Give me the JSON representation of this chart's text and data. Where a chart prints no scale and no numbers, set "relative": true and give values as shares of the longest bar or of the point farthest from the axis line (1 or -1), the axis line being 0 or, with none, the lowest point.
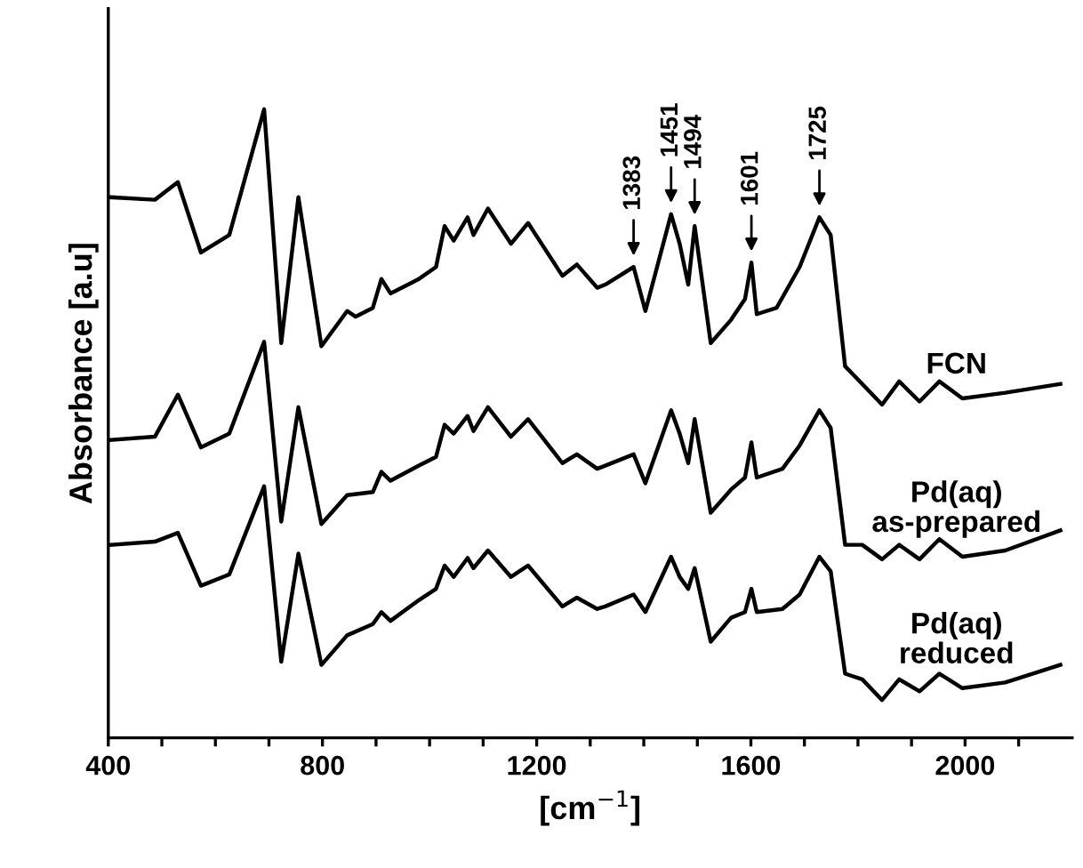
{
  "chart_data": {
    "type": "line",
    "relative": true,
    "xlabel": "[cm$^{−1}$]",
    "ylabel": "Absorbance [a.u]",
    "xlim": [
      400,
      2200
    ],
    "xticks": [
      400,
      {
        "value": 500,
        "label": null
      },
      {
        "value": 600,
        "label": null
      },
      {
        "value": 700,
        "label": null
      },
      800,
      {
        "value": 900,
        "label": null
      },
      {
        "value": 1000,
        "label": null
      },
      {
        "value": 1100,
        "label": null
      },
      1200,
      {
        "value": 1300,
        "label": null
      },
      {
        "value": 1400,
        "label": null
      },
      {
        "value": 1500,
        "label": null
      },
      1600,
      {
        "value": 1700,
        "label": null
      },
      {
        "value": 1800,
        "label": null
      },
      {
        "value": 1900,
        "label": null
      },
      2000,
      {
        "value": 2100,
        "label": null
      }
    ],
    "tick_labels": "x",
    "grid": false,
    "legend": false,
    "marker": "none",
    "line_style": "solid",
    "series": [
      {
        "name": "FCN",
        "color": "#000000",
        "x": [
          405,
          487,
          530,
          573,
          626,
          691,
          723,
          755,
          798,
          846,
          862,
          894,
          910,
          927,
          980,
          1012,
          1028,
          1045,
          1071,
          1082,
          1109,
          1152,
          1184,
          1248,
          1275,
          1313,
          1328,
          1381,
          1403,
          1451,
          1467,
          1483,
          1495,
          1525,
          1563,
          1589,
          1601,
          1611,
          1648,
          1691,
          1728,
          1749,
          1776,
          1808,
          1845,
          1877,
          1915,
          1952,
          1995,
          2075,
          2178
        ],
        "values": [
          0.86,
          0.856,
          0.884,
          0.772,
          0.8,
          1,
          0.628,
          0.86,
          0.623,
          0.679,
          0.67,
          0.684,
          0.73,
          0.707,
          0.73,
          0.749,
          0.814,
          0.791,
          0.828,
          0.8,
          0.842,
          0.786,
          0.819,
          0.735,
          0.753,
          0.716,
          0.721,
          0.749,
          0.679,
          0.833,
          0.786,
          0.721,
          0.814,
          0.628,
          0.665,
          0.698,
          0.756,
          0.674,
          0.684,
          0.749,
          0.828,
          0.8,
          0.591,
          0.563,
          0.53,
          0.567,
          0.535,
          0.567,
          0.54,
          0.549,
          0.563
        ]
      },
      {
        "name": "Pd(aq)\nas-prepared",
        "color": "#000000",
        "x": [
          405,
          487,
          530,
          573,
          626,
          691,
          723,
          755,
          798,
          846,
          894,
          910,
          927,
          980,
          1012,
          1028,
          1045,
          1071,
          1082,
          1109,
          1152,
          1184,
          1248,
          1275,
          1313,
          1328,
          1381,
          1403,
          1451,
          1467,
          1483,
          1495,
          1525,
          1563,
          1589,
          1601,
          1611,
          1659,
          1691,
          1728,
          1749,
          1776,
          1808,
          1845,
          1877,
          1915,
          1952,
          1995,
          2075,
          2178
        ],
        "values": [
          0.474,
          0.479,
          0.546,
          0.462,
          0.484,
          0.63,
          0.344,
          0.526,
          0.34,
          0.386,
          0.391,
          0.423,
          0.409,
          0.433,
          0.447,
          0.498,
          0.484,
          0.512,
          0.488,
          0.526,
          0.479,
          0.507,
          0.437,
          0.451,
          0.428,
          0.433,
          0.451,
          0.405,
          0.521,
          0.484,
          0.437,
          0.507,
          0.358,
          0.395,
          0.414,
          0.47,
          0.414,
          0.428,
          0.465,
          0.521,
          0.493,
          0.307,
          0.307,
          0.284,
          0.307,
          0.284,
          0.316,
          0.288,
          0.298,
          0.33
        ]
      },
      {
        "name": "Pd(aq)\nreduced",
        "color": "#000000",
        "x": [
          405,
          487,
          530,
          573,
          626,
          691,
          723,
          755,
          798,
          846,
          894,
          910,
          927,
          980,
          1012,
          1028,
          1045,
          1071,
          1082,
          1109,
          1152,
          1184,
          1248,
          1275,
          1313,
          1328,
          1381,
          1403,
          1451,
          1467,
          1483,
          1495,
          1525,
          1563,
          1589,
          1601,
          1611,
          1659,
          1691,
          1728,
          1749,
          1776,
          1808,
          1845,
          1877,
          1915,
          1952,
          1995,
          2075,
          2178
        ],
        "values": [
          0.307,
          0.312,
          0.326,
          0.242,
          0.26,
          0.4,
          0.121,
          0.293,
          0.116,
          0.163,
          0.181,
          0.2,
          0.186,
          0.219,
          0.237,
          0.274,
          0.256,
          0.286,
          0.27,
          0.298,
          0.256,
          0.274,
          0.209,
          0.223,
          0.205,
          0.209,
          0.228,
          0.2,
          0.288,
          0.256,
          0.237,
          0.27,
          0.153,
          0.191,
          0.2,
          0.237,
          0.2,
          0.205,
          0.228,
          0.288,
          0.265,
          0.102,
          0.093,
          0.06,
          0.093,
          0.074,
          0.102,
          0.079,
          0.088,
          0.116
        ]
      }
    ],
    "annotations": [
      {
        "text": "1383",
        "x": 1381,
        "y": 0.749
      },
      {
        "text": "1451",
        "x": 1451,
        "y": 0.833
      },
      {
        "text": "1494",
        "x": 1495,
        "y": 0.814
      },
      {
        "text": "1601",
        "x": 1601,
        "y": 0.756
      },
      {
        "text": "1725",
        "x": 1728,
        "y": 0.828
      }
    ]
  }
}
